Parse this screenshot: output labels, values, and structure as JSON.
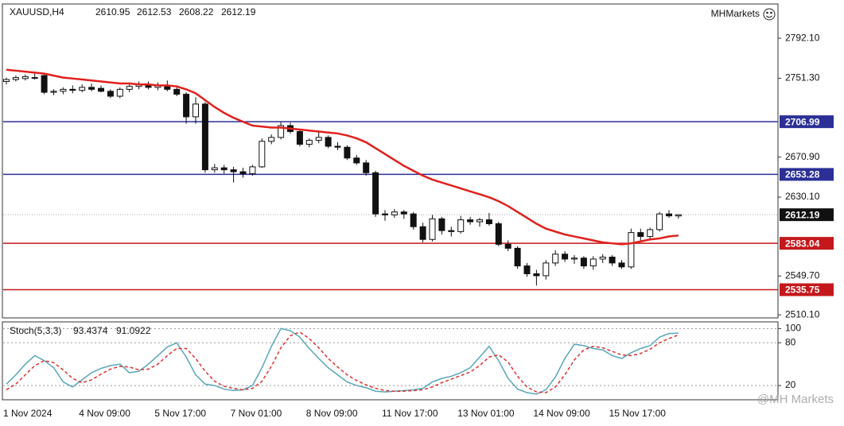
{
  "brand": "MHMarkets",
  "watermark": "@MH Markets",
  "chart_data": [
    {
      "type": "candlestick",
      "title": "XAUUSD,H4",
      "categories": [
        "1 Nov 2024",
        null,
        null,
        null,
        null,
        null,
        null,
        null,
        "4 Nov 09:00",
        null,
        null,
        null,
        null,
        null,
        null,
        null,
        "5 Nov 17:00",
        null,
        null,
        null,
        null,
        null,
        null,
        null,
        "7 Nov 01:00",
        null,
        null,
        null,
        null,
        null,
        null,
        null,
        "8 Nov 09:00",
        null,
        null,
        null,
        null,
        null,
        null,
        null,
        "11 Nov 17:00",
        null,
        null,
        null,
        null,
        null,
        null,
        null,
        "13 Nov 01:00",
        null,
        null,
        null,
        null,
        null,
        null,
        null,
        "14 Nov 09:00",
        null,
        null,
        null,
        null,
        null,
        null,
        null,
        "15 Nov 17:00",
        null,
        null,
        null,
        null,
        null,
        null,
        null
      ],
      "open": [
        2748,
        2750,
        2751,
        2752,
        2754,
        2737,
        2738,
        2740,
        2739,
        2742,
        2741,
        2738,
        2733,
        2740,
        2743,
        2745,
        2742,
        2744,
        2740,
        2735,
        2712,
        2725,
        2658,
        2660,
        2658,
        2656,
        2654,
        2661,
        2687,
        2691,
        2703,
        2697,
        2684,
        2688,
        2691,
        2682,
        2681,
        2670,
        2665,
        2655,
        2613,
        2612,
        2615,
        2613,
        2600,
        2587,
        2608,
        2596,
        2595,
        2607,
        2605,
        2607,
        2603,
        2582,
        2578,
        2560,
        2552,
        2550,
        2563,
        2572,
        2567,
        2568,
        2560,
        2567,
        2569,
        2563,
        2559,
        2594,
        2590,
        2597,
        2613,
        2610.95
      ],
      "high": [
        2752,
        2754,
        2755,
        2756,
        2756,
        2740,
        2742,
        2744,
        2745,
        2746,
        2744,
        2740,
        2742,
        2745,
        2748,
        2748,
        2747,
        2749,
        2744,
        2737,
        2732,
        2727,
        2664,
        2663,
        2661,
        2660,
        2663,
        2690,
        2694,
        2707,
        2706,
        2699,
        2690,
        2698,
        2693,
        2686,
        2683,
        2673,
        2668,
        2657,
        2617,
        2618,
        2617,
        2615,
        2604,
        2612,
        2610,
        2600,
        2611,
        2610,
        2609,
        2614,
        2605,
        2586,
        2580,
        2563,
        2556,
        2566,
        2576,
        2575,
        2571,
        2570,
        2570,
        2572,
        2571,
        2566,
        2598,
        2598,
        2599,
        2615,
        2617,
        2612.53
      ],
      "low": [
        2745,
        2748,
        2749,
        2750,
        2735,
        2734,
        2735,
        2736,
        2737,
        2738,
        2737,
        2731,
        2731,
        2737,
        2740,
        2740,
        2739,
        2738,
        2733,
        2705,
        2705,
        2655,
        2655,
        2654,
        2645,
        2650,
        2652,
        2660,
        2684,
        2689,
        2695,
        2682,
        2681,
        2685,
        2680,
        2678,
        2668,
        2663,
        2652,
        2610,
        2606,
        2609,
        2608,
        2597,
        2584,
        2585,
        2592,
        2590,
        2593,
        2602,
        2600,
        2601,
        2580,
        2575,
        2557,
        2549,
        2540,
        2546,
        2560,
        2564,
        2562,
        2557,
        2556,
        2563,
        2560,
        2557,
        2557,
        2586,
        2588,
        2595,
        2609,
        2608.22
      ],
      "close": [
        2750,
        2752,
        2753,
        2752,
        2737,
        2738,
        2740,
        2739,
        2742,
        2740,
        2738,
        2733,
        2740,
        2743,
        2745,
        2742,
        2744,
        2740,
        2735,
        2712,
        2725,
        2658,
        2660,
        2658,
        2656,
        2654,
        2661,
        2687,
        2691,
        2703,
        2697,
        2684,
        2688,
        2691,
        2682,
        2681,
        2670,
        2665,
        2655,
        2613,
        2612,
        2615,
        2613,
        2600,
        2587,
        2608,
        2596,
        2595,
        2607,
        2605,
        2607,
        2603,
        2582,
        2578,
        2560,
        2552,
        2550,
        2563,
        2572,
        2567,
        2568,
        2560,
        2567,
        2569,
        2563,
        2559,
        2594,
        2590,
        2597,
        2613,
        2611,
        2612.19
      ],
      "ma": {
        "color": "#e0201c",
        "values": [
          2760,
          2759,
          2758,
          2757,
          2756,
          2754,
          2752,
          2751,
          2750,
          2749,
          2748,
          2747,
          2746,
          2746,
          2745,
          2745,
          2744,
          2744,
          2743,
          2740,
          2736,
          2729,
          2722,
          2716,
          2711,
          2707,
          2703,
          2702,
          2701,
          2701,
          2700,
          2699,
          2698,
          2697,
          2696,
          2695,
          2693,
          2690,
          2686,
          2680,
          2674,
          2668,
          2662,
          2657,
          2652,
          2648,
          2645,
          2642,
          2639,
          2636,
          2633,
          2630,
          2626,
          2621,
          2615,
          2609,
          2603,
          2598,
          2595,
          2592,
          2590,
          2588,
          2586,
          2584,
          2583,
          2582,
          2583,
          2585,
          2587,
          2588,
          2590,
          2591
        ]
      },
      "levels": [
        {
          "value": 2706.99,
          "color": "#2b2f96"
        },
        {
          "value": 2653.28,
          "color": "#2b2f96"
        },
        {
          "value": 2583.04,
          "color": "#c4181c"
        },
        {
          "value": 2535.75,
          "color": "#c4181c"
        }
      ],
      "ylim": [
        2507,
        2827
      ],
      "yticks": [
        {
          "value": 2792.1,
          "label": "2792.10"
        },
        {
          "value": 2751.3,
          "label": "2751.30"
        },
        {
          "value": 2670.9,
          "label": "2670.90"
        },
        {
          "value": 2630.1,
          "label": "2630.10"
        },
        {
          "value": 2549.7,
          "label": "2549.70"
        },
        {
          "value": 2510.1,
          "label": "2510.10"
        }
      ]
    },
    {
      "type": "line",
      "title": "Stoch(5,3,3)",
      "series": [
        {
          "color": "#5aa6b8",
          "values": [
            22,
            35,
            50,
            62,
            55,
            45,
            25,
            18,
            28,
            38,
            44,
            48,
            50,
            38,
            40,
            50,
            62,
            74,
            80,
            60,
            35,
            22,
            20,
            15,
            13,
            14,
            20,
            45,
            75,
            100,
            97,
            88,
            72,
            58,
            45,
            35,
            25,
            20,
            17,
            12,
            11,
            12,
            13,
            14,
            16,
            25,
            30,
            33,
            38,
            45,
            60,
            75,
            55,
            30,
            15,
            10,
            8,
            14,
            32,
            58,
            78,
            76,
            72,
            70,
            62,
            58,
            66,
            72,
            76,
            88,
            93,
            93.4374
          ]
        },
        {
          "color": "#e03030",
          "dashed": true,
          "values": [
            14,
            22,
            35,
            48,
            55,
            52,
            42,
            30,
            24,
            28,
            36,
            43,
            47,
            46,
            42,
            43,
            50,
            62,
            72,
            72,
            58,
            40,
            26,
            19,
            16,
            14,
            16,
            26,
            47,
            73,
            90,
            95,
            86,
            73,
            58,
            46,
            35,
            27,
            21,
            16,
            13,
            12,
            12,
            13,
            14,
            18,
            24,
            29,
            34,
            39,
            48,
            60,
            63,
            53,
            33,
            18,
            11,
            10,
            18,
            35,
            56,
            70,
            75,
            73,
            68,
            63,
            62,
            65,
            71,
            80,
            86,
            91.0922
          ]
        }
      ],
      "ylim": [
        0,
        106
      ],
      "yticks": [
        100,
        80,
        20
      ]
    }
  ]
}
